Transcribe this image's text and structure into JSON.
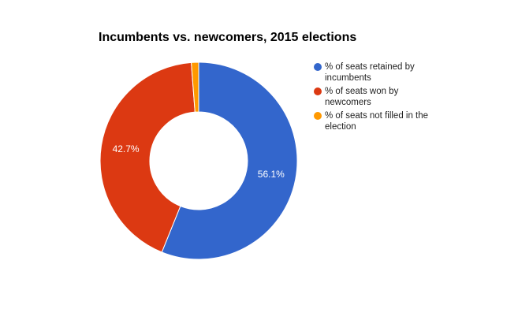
{
  "chart_data": {
    "type": "pie",
    "title": "Incumbents vs. newcomers, 2015 elections",
    "categories": [
      "% of seats retained by incumbents",
      "% of seats won by newcomers",
      "% of seats not filled in the election"
    ],
    "values": [
      56.1,
      42.7,
      1.2
    ],
    "value_labels": [
      "56.1%",
      "42.7%",
      null
    ],
    "colors": [
      "#3366cc",
      "#dc3912",
      "#ff9900"
    ],
    "donut": true,
    "legend": "right"
  }
}
